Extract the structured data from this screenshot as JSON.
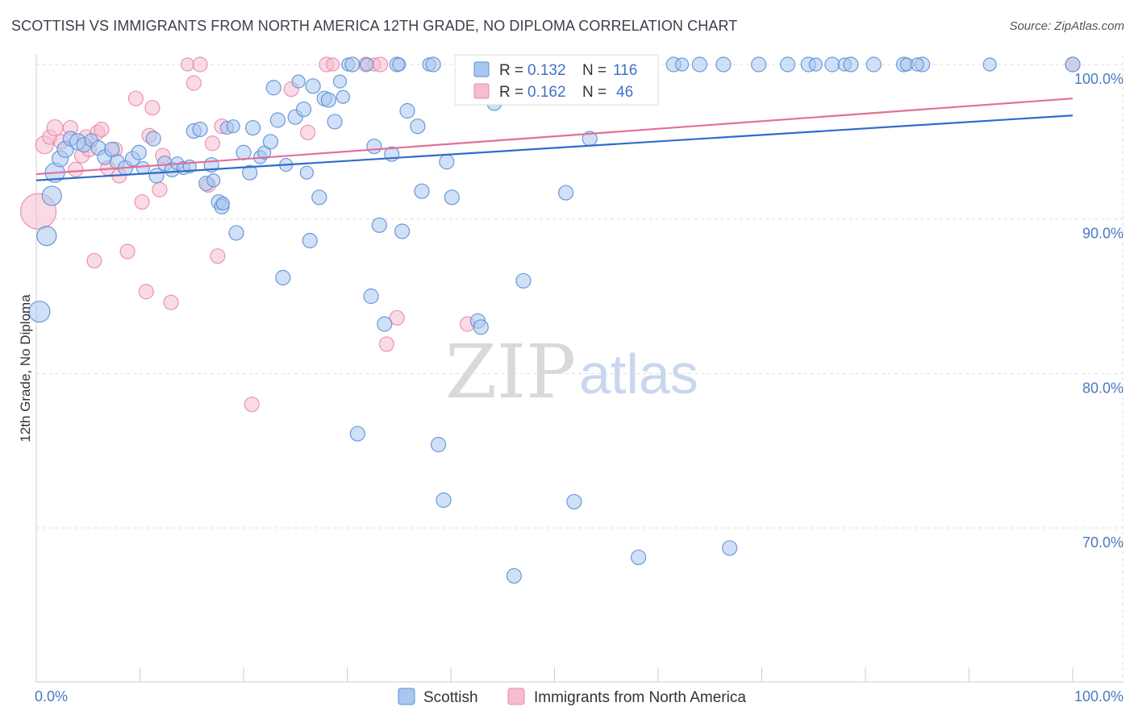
{
  "title": "SCOTTISH VS IMMIGRANTS FROM NORTH AMERICA 12TH GRADE, NO DIPLOMA CORRELATION CHART",
  "source": "Source: ZipAtlas.com",
  "watermark": {
    "zip": "ZIP",
    "atlas": "atlas"
  },
  "colors": {
    "scottish_fill": "#a9c6ef",
    "scottish_stroke": "#5b8fd6",
    "scottish_line": "#2f6cc9",
    "imm_fill": "#f6bcd0",
    "imm_stroke": "#e98aab",
    "imm_line": "#e0709a",
    "tick": "#4a78c2",
    "grid": "#dddddd"
  },
  "legend": {
    "rows": [
      {
        "r_label": "R =",
        "r_value": "0.132",
        "n_label": "N =",
        "n_value": "116"
      },
      {
        "r_label": "R =",
        "r_value": "0.162",
        "n_label": "N =",
        "n_value": "46"
      }
    ]
  },
  "chart_data": {
    "type": "scatter",
    "title": "SCOTTISH VS IMMIGRANTS FROM NORTH AMERICA 12TH GRADE, NO DIPLOMA CORRELATION CHART",
    "xlabel": "",
    "ylabel": "12th Grade, No Diploma",
    "xlim": [
      0,
      100
    ],
    "ylim": [
      60,
      101
    ],
    "x_tick_labels": [
      "0.0%",
      "100.0%"
    ],
    "y_ticks": [
      70,
      80,
      90,
      100
    ],
    "y_tick_labels": [
      "70.0%",
      "80.0%",
      "90.0%",
      "100.0%"
    ],
    "grid": true,
    "legend_position": "top-center",
    "series": [
      {
        "name": "Scottish",
        "r": 0.132,
        "n": 116,
        "trend": {
          "x": [
            0,
            100
          ],
          "y": [
            92.5,
            96.7
          ]
        },
        "points": [
          [
            0.3,
            84.0,
            13
          ],
          [
            1.0,
            88.9,
            12
          ],
          [
            1.5,
            91.5,
            12
          ],
          [
            1.8,
            93.0,
            12
          ],
          [
            2.3,
            93.9,
            10
          ],
          [
            2.8,
            94.5,
            10
          ],
          [
            3.3,
            95.2,
            9
          ],
          [
            4.0,
            95.0,
            10
          ],
          [
            4.6,
            94.8,
            9
          ],
          [
            5.3,
            95.1,
            8
          ],
          [
            6.0,
            94.6,
            9
          ],
          [
            6.6,
            94.0,
            9
          ],
          [
            7.3,
            94.5,
            9
          ],
          [
            7.8,
            93.7,
            9
          ],
          [
            8.6,
            93.3,
            9
          ],
          [
            9.3,
            93.9,
            9
          ],
          [
            9.9,
            94.3,
            9
          ],
          [
            10.3,
            93.3,
            8
          ],
          [
            11.3,
            95.2,
            9
          ],
          [
            11.6,
            92.8,
            9
          ],
          [
            12.4,
            93.6,
            9
          ],
          [
            13.1,
            93.2,
            9
          ],
          [
            13.6,
            93.6,
            8
          ],
          [
            14.2,
            93.3,
            8
          ],
          [
            14.8,
            93.4,
            8
          ],
          [
            15.2,
            95.7,
            9
          ],
          [
            15.8,
            95.8,
            9
          ],
          [
            16.4,
            92.3,
            9
          ],
          [
            16.9,
            93.5,
            9
          ],
          [
            17.1,
            92.5,
            8
          ],
          [
            17.6,
            91.1,
            9
          ],
          [
            17.9,
            90.8,
            9
          ],
          [
            18.0,
            91.0,
            8
          ],
          [
            18.4,
            95.9,
            8
          ],
          [
            19.0,
            96.0,
            8
          ],
          [
            19.3,
            89.1,
            9
          ],
          [
            20.0,
            94.3,
            9
          ],
          [
            20.6,
            93.0,
            9
          ],
          [
            20.9,
            95.9,
            9
          ],
          [
            21.6,
            94.0,
            8
          ],
          [
            22.0,
            94.3,
            8
          ],
          [
            22.6,
            95.0,
            9
          ],
          [
            22.9,
            98.5,
            9
          ],
          [
            23.3,
            96.4,
            9
          ],
          [
            23.8,
            86.2,
            9
          ],
          [
            24.1,
            93.5,
            8
          ],
          [
            25.0,
            96.6,
            9
          ],
          [
            25.3,
            98.9,
            8
          ],
          [
            25.8,
            97.1,
            9
          ],
          [
            26.1,
            93.0,
            8
          ],
          [
            26.4,
            88.6,
            9
          ],
          [
            26.7,
            98.6,
            9
          ],
          [
            27.3,
            91.4,
            9
          ],
          [
            27.8,
            97.8,
            9
          ],
          [
            28.2,
            97.7,
            9
          ],
          [
            28.8,
            96.3,
            9
          ],
          [
            29.3,
            98.9,
            8
          ],
          [
            29.6,
            97.9,
            8
          ],
          [
            30.1,
            100.0,
            8
          ],
          [
            30.5,
            100.0,
            9
          ],
          [
            31.0,
            76.1,
            9
          ],
          [
            31.9,
            100.0,
            8
          ],
          [
            32.3,
            85.0,
            9
          ],
          [
            32.6,
            94.7,
            9
          ],
          [
            33.1,
            89.6,
            9
          ],
          [
            33.6,
            83.2,
            9
          ],
          [
            34.3,
            94.2,
            9
          ],
          [
            34.8,
            100.0,
            9
          ],
          [
            35.0,
            100.0,
            8
          ],
          [
            35.3,
            89.2,
            9
          ],
          [
            35.8,
            97.0,
            9
          ],
          [
            36.8,
            96.0,
            9
          ],
          [
            37.2,
            91.8,
            9
          ],
          [
            37.9,
            100.0,
            8
          ],
          [
            38.3,
            100.0,
            9
          ],
          [
            38.8,
            75.4,
            9
          ],
          [
            39.3,
            71.8,
            9
          ],
          [
            39.6,
            93.7,
            9
          ],
          [
            40.1,
            91.4,
            9
          ],
          [
            41.2,
            100.0,
            9
          ],
          [
            41.8,
            100.0,
            8
          ],
          [
            42.6,
            83.4,
            9
          ],
          [
            42.9,
            83.0,
            9
          ],
          [
            43.6,
            100.0,
            9
          ],
          [
            44.2,
            97.5,
            9
          ],
          [
            44.9,
            100.0,
            8
          ],
          [
            45.6,
            100.0,
            9
          ],
          [
            46.1,
            66.9,
            9
          ],
          [
            46.6,
            100.0,
            8
          ],
          [
            47.0,
            86.0,
            9
          ],
          [
            47.9,
            100.0,
            9
          ],
          [
            48.3,
            100.0,
            8
          ],
          [
            49.2,
            100.0,
            9
          ],
          [
            49.8,
            100.0,
            8
          ],
          [
            50.2,
            98.0,
            9
          ],
          [
            50.6,
            100.0,
            8
          ],
          [
            51.1,
            91.7,
            9
          ],
          [
            51.9,
            71.7,
            9
          ],
          [
            52.3,
            100.0,
            8
          ],
          [
            53.4,
            95.2,
            9
          ],
          [
            54.0,
            100.0,
            8
          ],
          [
            54.5,
            100.0,
            9
          ],
          [
            56.1,
            100.0,
            9
          ],
          [
            58.1,
            68.1,
            9
          ],
          [
            59.0,
            100.0,
            9
          ],
          [
            61.5,
            100.0,
            9
          ],
          [
            62.3,
            100.0,
            8
          ],
          [
            64.0,
            100.0,
            9
          ],
          [
            66.3,
            100.0,
            9
          ],
          [
            66.9,
            68.7,
            9
          ],
          [
            69.7,
            100.0,
            9
          ],
          [
            72.5,
            100.0,
            9
          ],
          [
            74.5,
            100.0,
            9
          ],
          [
            75.2,
            100.0,
            8
          ],
          [
            76.8,
            100.0,
            9
          ],
          [
            78.0,
            100.0,
            8
          ],
          [
            78.6,
            100.0,
            9
          ],
          [
            80.8,
            100.0,
            9
          ],
          [
            83.7,
            100.0,
            9
          ],
          [
            84.0,
            100.0,
            8
          ],
          [
            85.5,
            100.0,
            9
          ],
          [
            85.0,
            100.0,
            8
          ],
          [
            92.0,
            100.0,
            8
          ],
          [
            100.0,
            100.0,
            9
          ]
        ]
      },
      {
        "name": "Immigrants from North America",
        "r": 0.162,
        "n": 46,
        "trend": {
          "x": [
            0,
            100
          ],
          "y": [
            92.9,
            97.8
          ]
        },
        "points": [
          [
            0.2,
            90.5,
            22
          ],
          [
            0.8,
            94.8,
            11
          ],
          [
            1.3,
            95.3,
            9
          ],
          [
            1.8,
            95.9,
            10
          ],
          [
            2.4,
            95.0,
            9
          ],
          [
            3.3,
            95.9,
            9
          ],
          [
            3.8,
            93.2,
            9
          ],
          [
            4.4,
            94.1,
            9
          ],
          [
            4.8,
            95.3,
            9
          ],
          [
            5.1,
            94.5,
            9
          ],
          [
            5.6,
            87.3,
            9
          ],
          [
            5.9,
            95.6,
            9
          ],
          [
            6.3,
            95.8,
            9
          ],
          [
            6.9,
            93.3,
            9
          ],
          [
            7.6,
            94.5,
            9
          ],
          [
            8.0,
            92.8,
            9
          ],
          [
            8.8,
            87.9,
            9
          ],
          [
            9.6,
            97.8,
            9
          ],
          [
            10.2,
            91.1,
            9
          ],
          [
            10.6,
            85.3,
            9
          ],
          [
            10.9,
            95.4,
            9
          ],
          [
            11.2,
            97.2,
            9
          ],
          [
            11.9,
            91.9,
            9
          ],
          [
            12.2,
            94.1,
            9
          ],
          [
            13.0,
            84.6,
            9
          ],
          [
            14.6,
            100.0,
            8
          ],
          [
            15.2,
            98.8,
            9
          ],
          [
            15.8,
            100.0,
            9
          ],
          [
            16.6,
            92.2,
            9
          ],
          [
            17.0,
            94.9,
            9
          ],
          [
            17.5,
            87.6,
            9
          ],
          [
            17.9,
            96.0,
            9
          ],
          [
            20.8,
            78.0,
            9
          ],
          [
            24.6,
            98.4,
            9
          ],
          [
            26.2,
            95.6,
            9
          ],
          [
            28.0,
            100.0,
            9
          ],
          [
            28.6,
            100.0,
            8
          ],
          [
            31.8,
            100.0,
            9
          ],
          [
            32.6,
            100.0,
            8
          ],
          [
            33.2,
            100.0,
            9
          ],
          [
            33.8,
            81.9,
            9
          ],
          [
            34.8,
            83.6,
            9
          ],
          [
            41.6,
            83.2,
            9
          ],
          [
            42.8,
            100.0,
            8
          ],
          [
            45.0,
            100.0,
            8
          ],
          [
            100.0,
            100.0,
            9
          ]
        ]
      }
    ]
  }
}
